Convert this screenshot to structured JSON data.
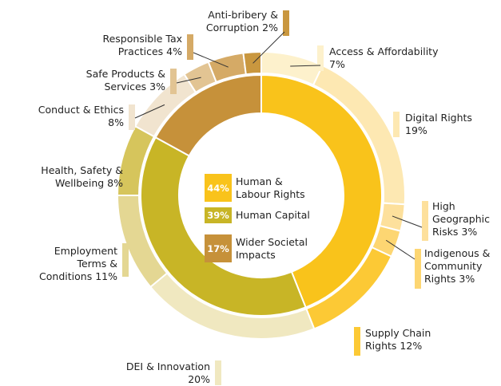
{
  "chart_data": {
    "type": "nested-donut",
    "inner": {
      "categories": [
        "Human & Labour Rights",
        "Human Capital",
        "Wider Societal Impacts"
      ],
      "values": [
        44,
        39,
        17
      ],
      "value_labels": [
        "44%",
        "39%",
        "17%"
      ],
      "colors": [
        "#f9c31b",
        "#c8b526",
        "#c6913a"
      ]
    },
    "outer": {
      "categories": [
        "Access & Affordability",
        "Digital Rights",
        "High Geographic Risks",
        "Indigenous & Community Rights",
        "Supply Chain Rights",
        "DEI & Innovation",
        "Employment Terms & Conditions",
        "Health, Safety & Wellbeing",
        "Conduct & Ethics",
        "Safe Products & Services",
        "Responsible Tax Practices",
        "Anti-bribery & Corruption"
      ],
      "values": [
        7,
        19,
        3,
        3,
        12,
        20,
        11,
        8,
        8,
        3,
        4,
        2
      ],
      "value_labels": [
        "7%",
        "19%",
        "3%",
        "3%",
        "12%",
        "20%",
        "11%",
        "8%",
        "8%",
        "3%",
        "4%",
        "2%"
      ],
      "colors": [
        "#fdf1cc",
        "#fde8b2",
        "#fde09c",
        "#fdd672",
        "#fcc935",
        "#f0e8c0",
        "#e4d793",
        "#d6c55c",
        "#f1e4cf",
        "#e2c493",
        "#d5aa66",
        "#c9973f"
      ]
    }
  }
}
